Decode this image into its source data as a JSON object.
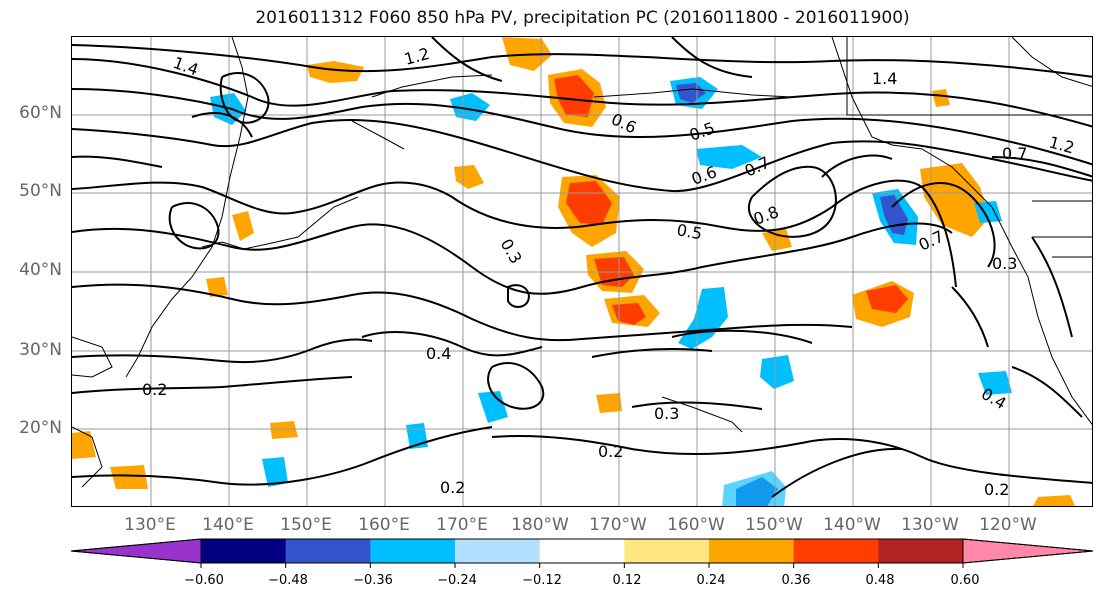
{
  "title": "2016011312 F060 850 hPa PV, precipitation PC (2016011800 - 2016011900)",
  "map": {
    "lat_labels": [
      "60°N",
      "50°N",
      "40°N",
      "30°N",
      "20°N"
    ],
    "lon_labels": [
      "130°E",
      "140°E",
      "150°E",
      "160°E",
      "170°E",
      "180°W",
      "170°W",
      "160°W",
      "150°W",
      "140°W",
      "130°W",
      "120°W"
    ],
    "contour_labels": [
      "1.4",
      "1.2",
      "1.4",
      "0.6",
      "0.5",
      "0.6",
      "0.7",
      "0.8",
      "0.5",
      "0.7",
      "0.3",
      "0.4",
      "0.2",
      "0.3",
      "0.2",
      "0.2",
      "0.2",
      "0.4",
      "1.2",
      "0.7",
      "0.3"
    ]
  },
  "colorbar": {
    "tick_labels": [
      "−0.60",
      "−0.48",
      "−0.36",
      "−0.24",
      "−0.12",
      "0.12",
      "0.24",
      "0.36",
      "0.48",
      "0.60"
    ],
    "colors": [
      "#9933cc",
      "#000080",
      "#3355cc",
      "#00bfff",
      "#b3e0ff",
      "#ffffff",
      "#ffe680",
      "#ffa500",
      "#ff3d00",
      "#b22222",
      "#ff88aa"
    ]
  }
}
